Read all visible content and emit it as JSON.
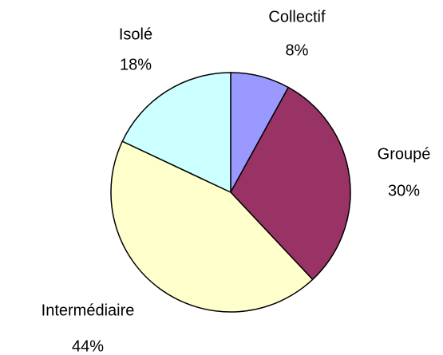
{
  "chart_data": {
    "type": "pie",
    "categories": [
      "Collectif",
      "Groupé",
      "Intermédiaire",
      "Isolé"
    ],
    "values": [
      8,
      30,
      44,
      18
    ],
    "value_labels": [
      "8%",
      "30%",
      "44%",
      "18%"
    ],
    "colors": [
      "#9999ff",
      "#993366",
      "#ffffcc",
      "#ccffff"
    ],
    "start_angle": 90,
    "direction": "clockwise"
  }
}
